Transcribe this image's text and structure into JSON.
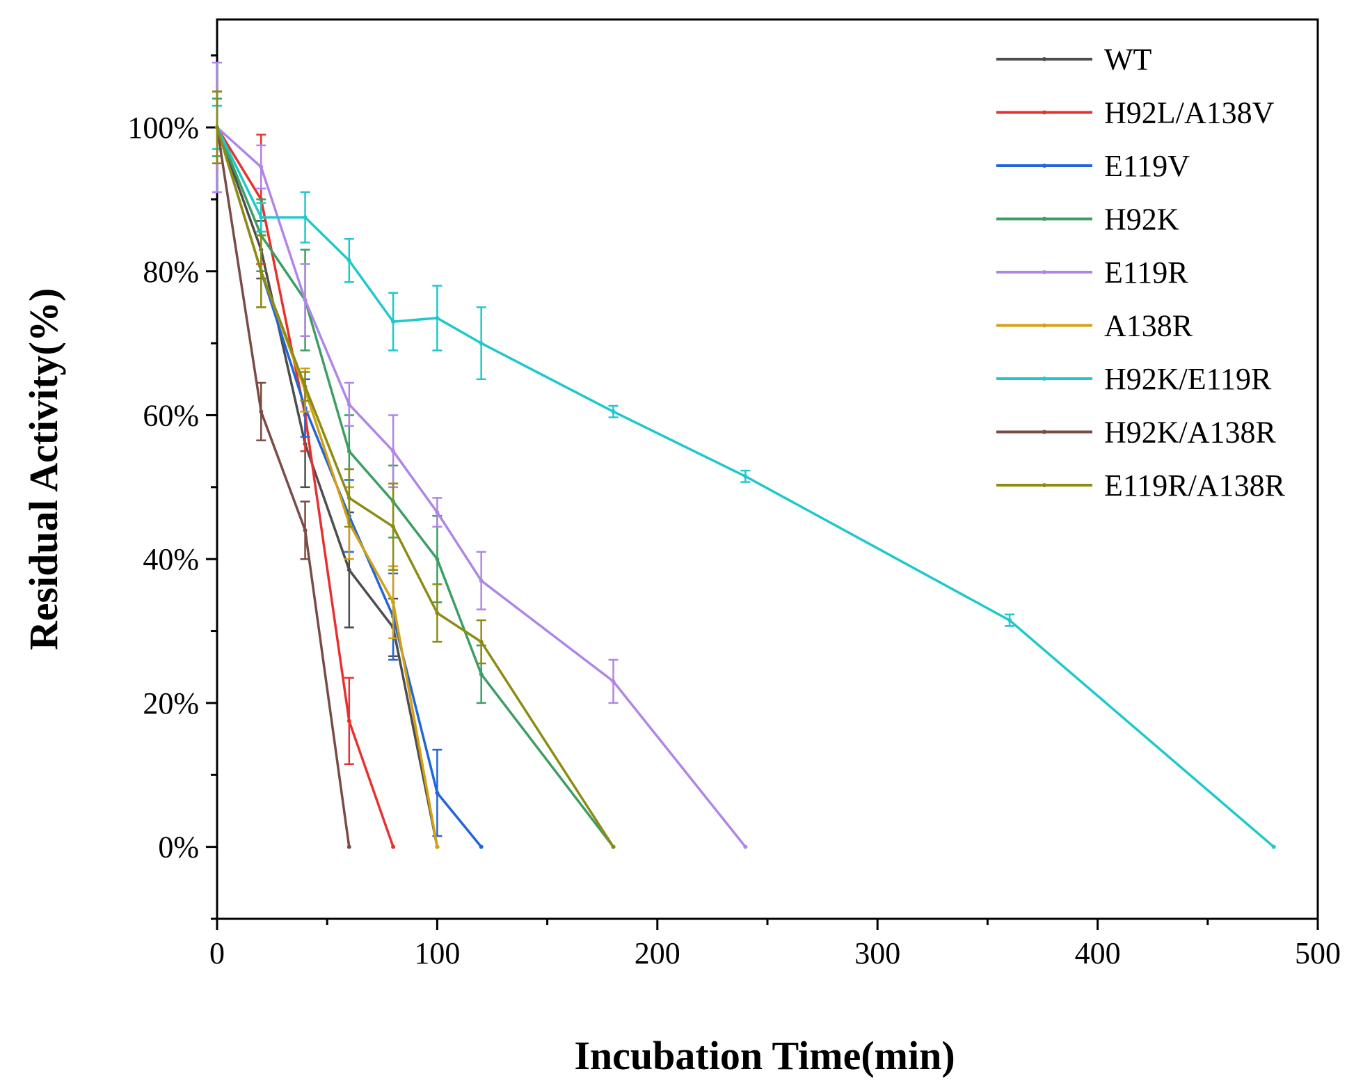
{
  "chart_data": {
    "type": "line",
    "title": "",
    "xlabel": "Incubation Time(min)",
    "ylabel": "Residual Activity(%)",
    "xlim": [
      0,
      500
    ],
    "ylim": [
      -10,
      115
    ],
    "x_ticks": [
      0,
      100,
      200,
      300,
      400,
      500
    ],
    "x_tick_labels": [
      "0",
      "100",
      "200",
      "300",
      "400",
      "500"
    ],
    "y_ticks": [
      0,
      20,
      40,
      60,
      80,
      100
    ],
    "y_tick_labels": [
      "0%",
      "20%",
      "40%",
      "60%",
      "80%",
      "100%"
    ],
    "grid": false,
    "legend_position": "top-right",
    "series": [
      {
        "name": "WT",
        "color": "#4d4d4d",
        "x": [
          0,
          20,
          40,
          60,
          80,
          100
        ],
        "y": [
          100,
          83,
          56,
          38.5,
          30.5,
          0
        ],
        "err": [
          5,
          4,
          6,
          8,
          4,
          0
        ]
      },
      {
        "name": "H92L/A138V",
        "color": "#e8302f",
        "x": [
          0,
          20,
          40,
          60,
          80
        ],
        "y": [
          100,
          90,
          60,
          17.5,
          0
        ],
        "err": [
          5,
          9,
          5,
          6,
          0
        ]
      },
      {
        "name": "E119V",
        "color": "#2166d8",
        "x": [
          0,
          20,
          40,
          60,
          80,
          100,
          120
        ],
        "y": [
          100,
          80,
          61,
          46,
          32,
          7.5,
          0
        ],
        "err": [
          5,
          5,
          4,
          5,
          6,
          6,
          0
        ]
      },
      {
        "name": "H92K",
        "color": "#3c9e62",
        "x": [
          0,
          20,
          40,
          60,
          80,
          100,
          120,
          180
        ],
        "y": [
          100,
          85,
          76,
          55,
          48,
          40,
          24,
          0
        ],
        "err": [
          4,
          5,
          7,
          5,
          5,
          6,
          4,
          0
        ]
      },
      {
        "name": "E119R",
        "color": "#b085e8",
        "x": [
          0,
          20,
          40,
          60,
          80,
          100,
          120,
          180,
          240
        ],
        "y": [
          100,
          94.5,
          76,
          61.5,
          55,
          46.5,
          37,
          23,
          0
        ],
        "err": [
          9,
          3,
          5,
          3,
          5,
          2,
          4,
          3,
          0
        ]
      },
      {
        "name": "A138R",
        "color": "#d4a012",
        "x": [
          0,
          20,
          40,
          60,
          80,
          100
        ],
        "y": [
          100,
          80,
          63.5,
          45,
          34,
          0
        ],
        "err": [
          5,
          5,
          3,
          5,
          5,
          0
        ]
      },
      {
        "name": "H92K/E119R",
        "color": "#1ec8cc",
        "x": [
          0,
          20,
          40,
          60,
          80,
          100,
          120,
          180,
          240,
          360,
          480
        ],
        "y": [
          100,
          87.5,
          87.5,
          81.5,
          73,
          73.5,
          70,
          60.5,
          51.5,
          31.5,
          0
        ],
        "err": [
          3,
          2,
          3.5,
          3,
          4,
          4.5,
          5,
          0.8,
          0.8,
          0.8,
          0
        ]
      },
      {
        "name": "H92K/A138R",
        "color": "#7a4a45",
        "x": [
          0,
          20,
          40,
          60
        ],
        "y": [
          100,
          60.5,
          44,
          0
        ],
        "err": [
          5,
          4,
          4,
          0
        ]
      },
      {
        "name": "E119R/A138R",
        "color": "#8c8c14",
        "x": [
          0,
          20,
          40,
          60,
          80,
          100,
          120,
          180
        ],
        "y": [
          100,
          80,
          64,
          48.5,
          44.5,
          32.5,
          28.5,
          0
        ],
        "err": [
          5,
          5,
          2,
          4,
          6,
          4,
          3,
          0
        ]
      }
    ]
  }
}
